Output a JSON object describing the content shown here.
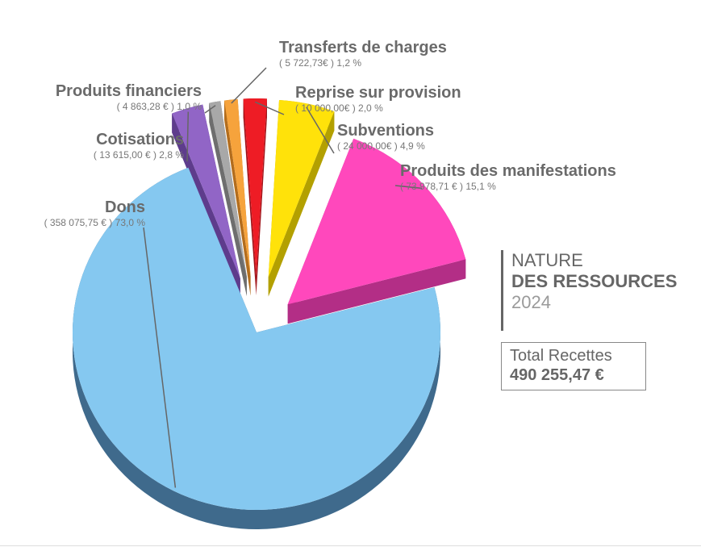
{
  "chart_data": {
    "type": "pie",
    "title": "",
    "slices": [
      {
        "name": "Dons",
        "value_label": "( 358 075,75 € ) 73,0 %",
        "value": 358075.75,
        "percent": 73.0,
        "color": "#85c8f0",
        "side": "#3f6a8c",
        "exploded": false
      },
      {
        "name": "Cotisations",
        "value_label": "( 13 615,00 € ) 2,8 %",
        "value": 13615.0,
        "percent": 2.8,
        "color": "#9165c6",
        "side": "#5e3c8c",
        "exploded": true
      },
      {
        "name": "Produits financiers",
        "value_label": "( 4 863,28 € ) 1,0 %",
        "value": 4863.28,
        "percent": 1.0,
        "color": "#a8a8a8",
        "side": "#6e6e6e",
        "exploded": true
      },
      {
        "name": "Transferts de charges",
        "value_label": "( 5 722,73€ ) 1,2 %",
        "value": 5722.73,
        "percent": 1.2,
        "color": "#f6a33c",
        "side": "#b36d1d",
        "exploded": true
      },
      {
        "name": "Reprise sur provision",
        "value_label": "( 10 000,00€ ) 2,0 %",
        "value": 10000.0,
        "percent": 2.0,
        "color": "#ee1c25",
        "side": "#a01218",
        "exploded": true
      },
      {
        "name": "Subventions",
        "value_label": "( 24 000,00€ ) 4,9 %",
        "value": 24000.0,
        "percent": 4.9,
        "color": "#ffe20a",
        "side": "#b3a000",
        "exploded": true
      },
      {
        "name": "Produits des manifestations",
        "value_label": "( 73 978,71 € ) 15,1 %",
        "value": 73978.71,
        "percent": 15.1,
        "color": "#ff48bc",
        "side": "#b32e86",
        "exploded": true
      }
    ]
  },
  "heading": {
    "line1": "NATURE",
    "line2": "DES RESSOURCES",
    "line3": "2024"
  },
  "total": {
    "label": "Total Recettes",
    "value": "490 255,47 €"
  }
}
